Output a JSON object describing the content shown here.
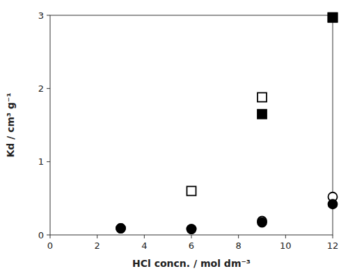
{
  "chart_data": {
    "type": "scatter",
    "xlabel": "HCl concn. / mol dm⁻³",
    "ylabel": "Kd / cm³ g⁻¹",
    "xlim": [
      0,
      12
    ],
    "ylim": [
      0,
      3
    ],
    "xticks": [
      0,
      2,
      4,
      6,
      8,
      10,
      12
    ],
    "yticks": [
      0,
      1,
      2,
      3
    ],
    "grid": false,
    "series": [
      {
        "x": [
          6,
          9,
          12
        ],
        "values": [
          0.6,
          1.88,
          2.97
        ],
        "marker": "square",
        "color": "white"
      },
      {
        "x": [
          9,
          12
        ],
        "values": [
          1.65,
          2.97
        ],
        "marker": "square",
        "color": "black"
      },
      {
        "x": [
          3,
          6,
          9,
          12
        ],
        "values": [
          0.09,
          0.08,
          0.19,
          0.52
        ],
        "marker": "circle",
        "color": "white"
      },
      {
        "x": [
          3,
          6,
          9,
          12
        ],
        "values": [
          0.09,
          0.08,
          0.17,
          0.42
        ],
        "marker": "circle",
        "color": "black"
      }
    ]
  }
}
